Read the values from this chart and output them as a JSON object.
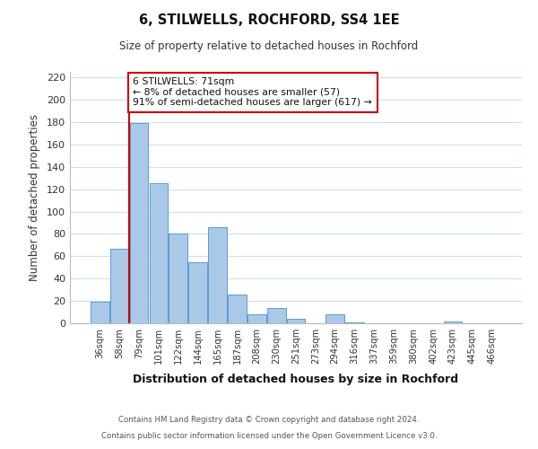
{
  "title": "6, STILWELLS, ROCHFORD, SS4 1EE",
  "subtitle": "Size of property relative to detached houses in Rochford",
  "xlabel": "Distribution of detached houses by size in Rochford",
  "ylabel": "Number of detached properties",
  "bar_labels": [
    "36sqm",
    "58sqm",
    "79sqm",
    "101sqm",
    "122sqm",
    "144sqm",
    "165sqm",
    "187sqm",
    "208sqm",
    "230sqm",
    "251sqm",
    "273sqm",
    "294sqm",
    "316sqm",
    "337sqm",
    "359sqm",
    "380sqm",
    "402sqm",
    "423sqm",
    "445sqm",
    "466sqm"
  ],
  "bar_heights": [
    19,
    67,
    179,
    125,
    80,
    55,
    86,
    26,
    8,
    14,
    4,
    0,
    8,
    1,
    0,
    0,
    0,
    0,
    2,
    0,
    0
  ],
  "bar_color": "#aac9e8",
  "bar_edge_color": "#5b9bd5",
  "ylim": [
    0,
    225
  ],
  "yticks": [
    0,
    20,
    40,
    60,
    80,
    100,
    120,
    140,
    160,
    180,
    200,
    220
  ],
  "property_line_color": "#cc0000",
  "annotation_title": "6 STILWELLS: 71sqm",
  "annotation_line1": "← 8% of detached houses are smaller (57)",
  "annotation_line2": "91% of semi-detached houses are larger (617) →",
  "annotation_box_color": "#ffffff",
  "annotation_box_edge": "#cc0000",
  "footer1": "Contains HM Land Registry data © Crown copyright and database right 2024.",
  "footer2": "Contains public sector information licensed under the Open Government Licence v3.0.",
  "background_color": "#ffffff",
  "grid_color": "#ccdff0"
}
